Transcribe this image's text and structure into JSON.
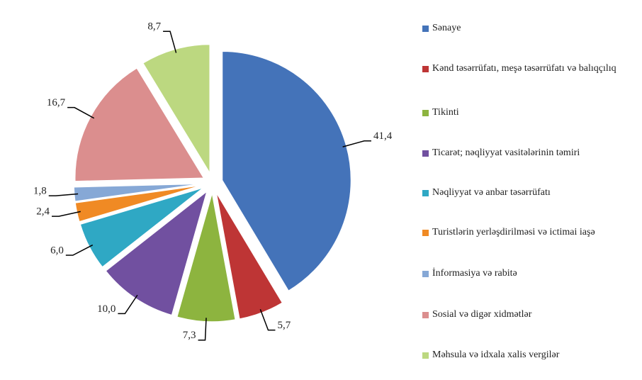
{
  "chart_data": {
    "type": "pie",
    "categories": [
      "Sənaye",
      "Kənd təsərrüfatı, meşə təsərrüfatı və balıqçılıq",
      "Tikinti",
      "Ticarət; nəqliyyat vasitələrinin təmiri",
      "Nəqliyyat və anbar təsərrüfatı",
      "Turistlərin yerləşdirilməsi və ictimai iaşə",
      "İnformasiya və rabitə",
      "Sosial və digər xidmətlər",
      "Məhsula və idxala xalis vergilər"
    ],
    "values": [
      41.4,
      5.7,
      7.3,
      10.0,
      6.0,
      2.4,
      1.8,
      16.7,
      8.7
    ],
    "value_labels": [
      "41,4",
      "5,7",
      "7,3",
      "10,0",
      "6,0",
      "2,4",
      "1,8",
      "16,7",
      "8,7"
    ],
    "colors": [
      "#4473b9",
      "#be3535",
      "#8db43f",
      "#7150a0",
      "#2fa8c4",
      "#f08a24",
      "#86a8d6",
      "#db8e8e",
      "#bcd880"
    ],
    "legend": "right"
  }
}
